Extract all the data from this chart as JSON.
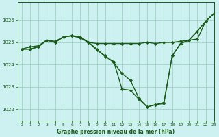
{
  "title": "Graphe pression niveau de la mer (hPa)",
  "bg_color": "#cdf0f0",
  "line_color": "#1a5c1a",
  "grid_color": "#99ccbb",
  "xlim": [
    -0.5,
    23
  ],
  "ylim": [
    1021.5,
    1026.8
  ],
  "yticks": [
    1022,
    1023,
    1024,
    1025,
    1026
  ],
  "xticks": [
    0,
    1,
    2,
    3,
    4,
    5,
    6,
    7,
    8,
    9,
    10,
    11,
    12,
    13,
    14,
    15,
    16,
    17,
    18,
    19,
    20,
    21,
    22,
    23
  ],
  "series": [
    [
      1024.7,
      1024.7,
      1024.8,
      1025.1,
      1025.0,
      1025.25,
      1025.3,
      1025.25,
      1025.0,
      1024.95,
      1024.95,
      1024.95,
      1024.95,
      1024.95,
      1024.95,
      1025.0,
      1024.95,
      1025.0,
      1025.0,
      1025.05,
      1025.1,
      1025.15,
      1025.95,
      1026.3
    ],
    [
      1024.7,
      1024.8,
      1024.85,
      1025.1,
      1025.05,
      1025.25,
      1025.3,
      1025.2,
      1025.0,
      1024.7,
      1024.35,
      1024.15,
      1022.9,
      1022.85,
      1022.45,
      1022.1,
      1022.2,
      1022.25,
      1024.4,
      1024.95,
      1025.1,
      1025.5,
      1025.95,
      1026.3
    ],
    [
      1024.7,
      1024.7,
      1024.8,
      1025.1,
      1025.0,
      1025.25,
      1025.3,
      1025.25,
      1025.0,
      1024.65,
      1024.4,
      1024.1,
      1023.6,
      1023.3,
      1022.5,
      1022.1,
      1022.2,
      1022.3,
      1024.4,
      1024.95,
      1025.1,
      1025.5,
      1025.95,
      1026.3
    ]
  ],
  "marker": "D",
  "markersize": 2.0,
  "linewidth": 1.0
}
